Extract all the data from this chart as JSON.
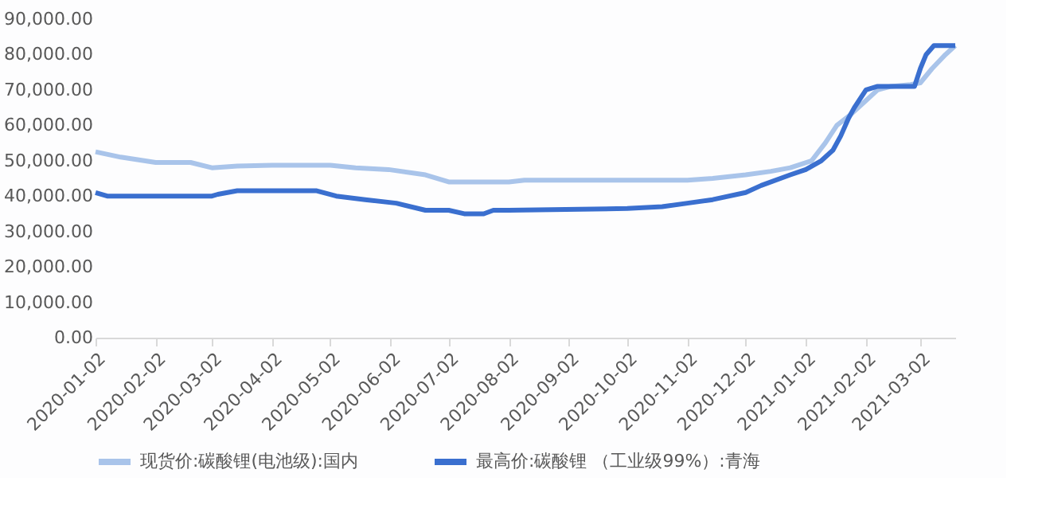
{
  "chart_data": {
    "type": "line",
    "legend": "bottom",
    "grid": false,
    "marker": "none",
    "line_style": "solid",
    "xlim": [
      "2020-01-02",
      "2021-03-20"
    ],
    "xticks": [
      "2020-01-02",
      "2020-02-02",
      "2020-03-02",
      "2020-04-02",
      "2020-05-02",
      "2020-06-02",
      "2020-07-02",
      "2020-08-02",
      "2020-09-02",
      "2020-10-02",
      "2020-11-02",
      "2020-12-02",
      "2021-01-02",
      "2021-02-02",
      "2021-03-02"
    ],
    "ylim": [
      0,
      90000
    ],
    "yticks": [
      {
        "value": 0,
        "label": "0.00"
      },
      {
        "value": 10000,
        "label": "10,000.00"
      },
      {
        "value": 20000,
        "label": "20,000.00"
      },
      {
        "value": 30000,
        "label": "30,000.00"
      },
      {
        "value": 40000,
        "label": "40,000.00"
      },
      {
        "value": 50000,
        "label": "50,000.00"
      },
      {
        "value": 60000,
        "label": "60,000.00"
      },
      {
        "value": 70000,
        "label": "70,000.00"
      },
      {
        "value": 80000,
        "label": "80,000.00"
      },
      {
        "value": 90000,
        "label": "90,000.00"
      }
    ],
    "series": [
      {
        "name": "现货价:碳酸锂(电池级):国内",
        "color": "#a9c4ea",
        "x": [
          "2020-01-02",
          "2020-01-15",
          "2020-02-02",
          "2020-02-20",
          "2020-03-02",
          "2020-03-15",
          "2020-04-02",
          "2020-05-02",
          "2020-05-15",
          "2020-06-01",
          "2020-06-20",
          "2020-07-02",
          "2020-08-02",
          "2020-08-10",
          "2020-11-02",
          "2020-11-15",
          "2020-12-02",
          "2020-12-15",
          "2020-12-25",
          "2021-01-05",
          "2021-01-12",
          "2021-01-18",
          "2021-01-25",
          "2021-02-02",
          "2021-02-08",
          "2021-02-15",
          "2021-02-25",
          "2021-03-02",
          "2021-03-08",
          "2021-03-15",
          "2021-03-20"
        ],
        "values": [
          52500,
          51000,
          49500,
          49500,
          48000,
          48500,
          48700,
          48700,
          48000,
          47500,
          46000,
          44000,
          44000,
          44500,
          44500,
          45000,
          46000,
          47000,
          48000,
          50000,
          55000,
          60000,
          63000,
          67000,
          70000,
          71000,
          71500,
          72000,
          76000,
          80000,
          82500
        ]
      },
      {
        "name": "最高价:碳酸锂 （工业级99%）:青海",
        "color": "#3a6fcf",
        "x": [
          "2020-01-02",
          "2020-01-08",
          "2020-03-02",
          "2020-03-05",
          "2020-03-15",
          "2020-04-25",
          "2020-05-05",
          "2020-05-20",
          "2020-06-05",
          "2020-06-20",
          "2020-07-02",
          "2020-07-10",
          "2020-07-20",
          "2020-07-25",
          "2020-08-02",
          "2020-10-02",
          "2020-10-20",
          "2020-11-02",
          "2020-11-15",
          "2020-12-02",
          "2020-12-10",
          "2020-12-25",
          "2021-01-02",
          "2021-01-10",
          "2021-01-16",
          "2021-01-20",
          "2021-01-24",
          "2021-01-27",
          "2021-02-02",
          "2021-02-08",
          "2021-02-27",
          "2021-03-02",
          "2021-03-05",
          "2021-03-09",
          "2021-03-20"
        ],
        "values": [
          41000,
          40000,
          40000,
          40500,
          41500,
          41500,
          40000,
          39000,
          38000,
          36000,
          36000,
          35000,
          35000,
          36000,
          36000,
          36500,
          37000,
          38000,
          39000,
          41000,
          43000,
          46000,
          47500,
          50000,
          53000,
          57000,
          62000,
          65000,
          70000,
          71000,
          71000,
          76000,
          80000,
          82500,
          82500
        ]
      }
    ]
  }
}
